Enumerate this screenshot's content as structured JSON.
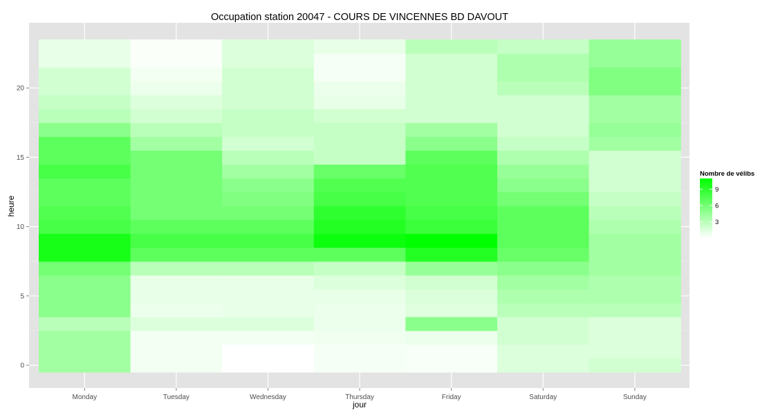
{
  "chart_data": {
    "type": "heatmap",
    "title": "Occupation station 20047 - COURS DE VINCENNES BD DAVOUT",
    "xlabel": "jour",
    "ylabel": "heure",
    "x_categories": [
      "Monday",
      "Tuesday",
      "Wednesday",
      "Thursday",
      "Friday",
      "Saturday",
      "Sunday"
    ],
    "y_values": [
      0,
      1,
      2,
      3,
      4,
      5,
      6,
      7,
      8,
      9,
      10,
      11,
      12,
      13,
      14,
      15,
      16,
      17,
      18,
      19,
      20,
      21,
      22,
      23
    ],
    "y_ticks": [
      0,
      5,
      10,
      15,
      20
    ],
    "ylim": [
      -0.5,
      23.5
    ],
    "grid": true,
    "values": [
      [
        4,
        0.5,
        0,
        0.4,
        0.3,
        1.5,
        2
      ],
      [
        4,
        0.5,
        0,
        0.4,
        0.3,
        1.5,
        1.5
      ],
      [
        4,
        0.5,
        0.5,
        0.6,
        0.8,
        2,
        1.5
      ],
      [
        3,
        1.5,
        1.5,
        0.8,
        5,
        2,
        1.5
      ],
      [
        5,
        0.8,
        1,
        0.8,
        1.4,
        3,
        3
      ],
      [
        5,
        1,
        1,
        1,
        1.6,
        3.5,
        3.5
      ],
      [
        5,
        1,
        1,
        1.5,
        2,
        4,
        3.5
      ],
      [
        6,
        3,
        3,
        2.5,
        4.5,
        5,
        4
      ],
      [
        10,
        7,
        7,
        7,
        9.5,
        6.5,
        4
      ],
      [
        10,
        8,
        8,
        10.5,
        11,
        7,
        4
      ],
      [
        8,
        7,
        7,
        9.5,
        8.5,
        7,
        3.5
      ],
      [
        7.5,
        6,
        6,
        9,
        8,
        7,
        3
      ],
      [
        7,
        6,
        5.5,
        8,
        7.5,
        6,
        2.5
      ],
      [
        7,
        6,
        5,
        7.5,
        7.5,
        5,
        2
      ],
      [
        8,
        6,
        4,
        6.5,
        7.5,
        4.5,
        2
      ],
      [
        7,
        6,
        3,
        2.5,
        7,
        3.5,
        2
      ],
      [
        7,
        4,
        2,
        2.5,
        5,
        2.5,
        4
      ],
      [
        5,
        3,
        2.5,
        2.5,
        4,
        2,
        4.5
      ],
      [
        3,
        2,
        2.5,
        2,
        2,
        2,
        4
      ],
      [
        2.5,
        1.5,
        2,
        1,
        2,
        2,
        4
      ],
      [
        2,
        0.8,
        2,
        0.8,
        2,
        3,
        5.5
      ],
      [
        2,
        0.5,
        2,
        0.4,
        2,
        3.5,
        5.5
      ],
      [
        1,
        0.2,
        1.5,
        0.4,
        2,
        3.5,
        4.5
      ],
      [
        1,
        0.2,
        1.5,
        1,
        3,
        2.5,
        4.5
      ]
    ],
    "legend": {
      "title": "Nombre de vélibs",
      "labels": [
        "3",
        "6",
        "9"
      ],
      "values": [
        3,
        6,
        9
      ],
      "range": [
        0,
        11
      ],
      "low_color": "#ffffff",
      "high_color": "#00ff00",
      "placement": "right"
    },
    "colors": {
      "panel_background": "#e3e3e3",
      "grid": "#ffffff",
      "tick_label": "#4d4d4d"
    }
  }
}
